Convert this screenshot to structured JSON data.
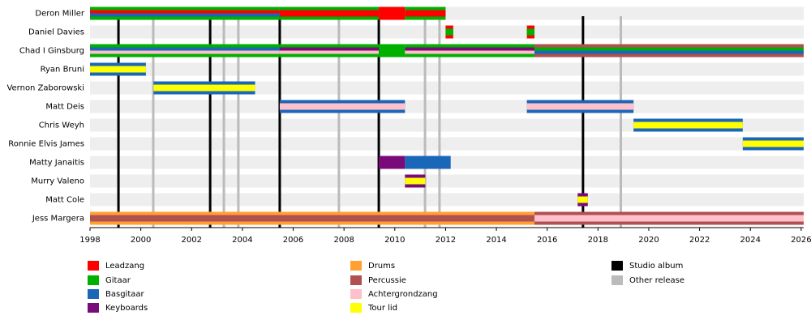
{
  "chart_data": {
    "type": "timeline",
    "xlim": [
      1998,
      2026.1
    ],
    "xticks": [
      1998,
      2000,
      2002,
      2004,
      2006,
      2008,
      2010,
      2012,
      2014,
      2016,
      2018,
      2020,
      2022,
      2024,
      2026
    ],
    "roles": [
      {
        "name": "Leadzang",
        "color": "#ff0000"
      },
      {
        "name": "Gitaar",
        "color": "#00b000"
      },
      {
        "name": "Basgitaar",
        "color": "#1a66b8"
      },
      {
        "name": "Keyboards",
        "color": "#7a0a7a"
      },
      {
        "name": "Drums",
        "color": "#ffa030"
      },
      {
        "name": "Percussie",
        "color": "#b05050"
      },
      {
        "name": "Achtergrondzang",
        "color": "#ffc0cb"
      },
      {
        "name": "Tour lid",
        "color": "#ffff00"
      }
    ],
    "events": [
      {
        "name": "Studio album",
        "color": "#000000",
        "x": [
          1999.12,
          2002.73,
          2005.47,
          2009.37,
          2017.41
        ]
      },
      {
        "name": "Other release",
        "color": "#bbbbbb",
        "x": [
          2000.49,
          2003.27,
          2003.84,
          2007.8,
          2011.19,
          2011.76,
          2018.9
        ]
      }
    ],
    "members": [
      {
        "name": "Deron Miller",
        "periods": [
          {
            "start": 1998,
            "end": 2005.47,
            "roles": [
              "Gitaar",
              "Leadzang",
              "Basgitaar"
            ]
          },
          {
            "start": 2005.47,
            "end": 2009.37,
            "roles": [
              "Gitaar",
              "Leadzang"
            ]
          },
          {
            "start": 2009.37,
            "end": 2010.4,
            "roles": [
              "Leadzang"
            ]
          },
          {
            "start": 2010.4,
            "end": 2012,
            "roles": [
              "Gitaar",
              "Leadzang"
            ]
          }
        ]
      },
      {
        "name": "Daniel Davies",
        "periods": [
          {
            "start": 2012,
            "end": 2012.3,
            "roles": [
              "Leadzang",
              "Gitaar"
            ]
          },
          {
            "start": 2015.2,
            "end": 2015.5,
            "roles": [
              "Leadzang",
              "Gitaar"
            ]
          }
        ]
      },
      {
        "name": "Chad I Ginsburg",
        "periods": [
          {
            "start": 1998,
            "end": 2005.47,
            "roles": [
              "Gitaar",
              "Basgitaar",
              "Achtergrondzang"
            ]
          },
          {
            "start": 2005.47,
            "end": 2009.37,
            "roles": [
              "Gitaar",
              "Keyboards",
              "Achtergrondzang"
            ]
          },
          {
            "start": 2009.37,
            "end": 2010.4,
            "roles": [
              "Gitaar"
            ]
          },
          {
            "start": 2010.4,
            "end": 2015.5,
            "roles": [
              "Gitaar",
              "Keyboards",
              "Achtergrondzang"
            ]
          },
          {
            "start": 2015.5,
            "end": 2026.1,
            "roles": [
              "Percussie",
              "Gitaar",
              "Basgitaar"
            ]
          }
        ]
      },
      {
        "name": "Ryan Bruni",
        "periods": [
          {
            "start": 1998,
            "end": 2000.2,
            "roles": [
              "Basgitaar",
              "Tour lid"
            ]
          }
        ]
      },
      {
        "name": "Vernon Zaborowski",
        "periods": [
          {
            "start": 2000.5,
            "end": 2004.5,
            "roles": [
              "Basgitaar",
              "Tour lid"
            ]
          }
        ]
      },
      {
        "name": "Matt Deis",
        "periods": [
          {
            "start": 2005.47,
            "end": 2010.4,
            "roles": [
              "Basgitaar",
              "Achtergrondzang"
            ]
          },
          {
            "start": 2015.2,
            "end": 2019.4,
            "roles": [
              "Basgitaar",
              "Achtergrondzang"
            ]
          }
        ]
      },
      {
        "name": "Chris Weyh",
        "periods": [
          {
            "start": 2019.4,
            "end": 2023.7,
            "roles": [
              "Basgitaar",
              "Tour lid"
            ]
          }
        ]
      },
      {
        "name": "Ronnie Elvis James",
        "periods": [
          {
            "start": 2023.7,
            "end": 2026.1,
            "roles": [
              "Basgitaar",
              "Tour lid"
            ]
          }
        ]
      },
      {
        "name": "Matty Janaitis",
        "periods": [
          {
            "start": 2009.37,
            "end": 2010.4,
            "roles": [
              "Keyboards"
            ]
          },
          {
            "start": 2010.4,
            "end": 2012.2,
            "roles": [
              "Basgitaar"
            ]
          }
        ]
      },
      {
        "name": "Murry Valeno",
        "periods": [
          {
            "start": 2010.4,
            "end": 2011.2,
            "roles": [
              "Keyboards",
              "Tour lid"
            ]
          }
        ]
      },
      {
        "name": "Matt Cole",
        "periods": [
          {
            "start": 2017.2,
            "end": 2017.6,
            "roles": [
              "Keyboards",
              "Tour lid"
            ]
          }
        ]
      },
      {
        "name": "Jess Margera",
        "periods": [
          {
            "start": 1998,
            "end": 2015.5,
            "roles": [
              "Drums",
              "Percussie"
            ]
          },
          {
            "start": 2015.5,
            "end": 2026.1,
            "roles": [
              "Percussie",
              "Achtergrondzang"
            ]
          }
        ]
      }
    ]
  }
}
